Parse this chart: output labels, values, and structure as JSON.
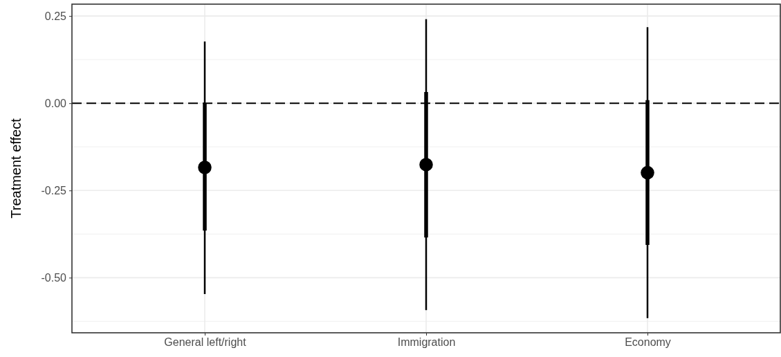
{
  "chart_data": {
    "type": "scatter",
    "ylabel": "Treatment effect",
    "categories": [
      "General left/right",
      "Immigration",
      "Economy"
    ],
    "ylim": [
      -0.658,
      0.284
    ],
    "yticks": [
      {
        "value": -0.5,
        "label": "-0.50"
      },
      {
        "value": -0.25,
        "label": "-0.25"
      },
      {
        "value": 0,
        "label": "0.00"
      },
      {
        "value": 0.25,
        "label": "0.25"
      }
    ],
    "grid": true,
    "series": [
      {
        "type": "bar",
        "color": "#000000",
        "base": [
          -0.547,
          -0.593,
          -0.616
        ],
        "values": [
          0.724,
          0.834,
          0.834
        ]
      },
      {
        "marker": "circle",
        "color": "#000000",
        "values": [
          -0.184,
          -0.176,
          -0.199
        ],
        "errors": [
          [
            -0.365,
            0.0
          ],
          [
            -0.385,
            0.032
          ],
          [
            -0.406,
            0.009
          ]
        ]
      }
    ],
    "ref_lines": [
      {
        "axis": "y",
        "value": 0,
        "color": "#000000",
        "line_style": "dashed"
      }
    ]
  }
}
